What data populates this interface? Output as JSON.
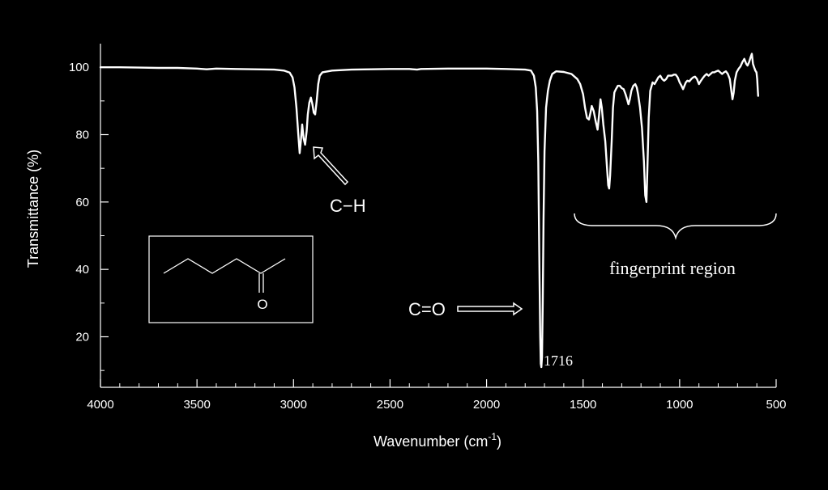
{
  "chart_data": {
    "type": "line",
    "xlabel": "Wavenumber (cm",
    "xlabel_sup": "-1",
    "xlabel_suffix": ")",
    "ylabel": "Transmittance (%)",
    "xlim": [
      4000,
      500
    ],
    "ylim": [
      5,
      107
    ],
    "x_ticks": [
      "4000",
      "3500",
      "3000",
      "2500",
      "2000",
      "1500",
      "1000",
      "500"
    ],
    "y_ticks": [
      "100",
      "80",
      "60",
      "40",
      "20"
    ],
    "grid": false,
    "series": [
      {
        "points": [
          [
            4000,
            100
          ],
          [
            3900,
            100
          ],
          [
            3800,
            99.9
          ],
          [
            3700,
            99.8
          ],
          [
            3600,
            99.8
          ],
          [
            3500,
            99.6
          ],
          [
            3450,
            99.4
          ],
          [
            3400,
            99.6
          ],
          [
            3300,
            99.5
          ],
          [
            3200,
            99.4
          ],
          [
            3100,
            99.3
          ],
          [
            3050,
            99.0
          ],
          [
            3020,
            98.4
          ],
          [
            3005,
            97.0
          ],
          [
            2995,
            94.0
          ],
          [
            2985,
            88.0
          ],
          [
            2975,
            80.0
          ],
          [
            2968,
            74.5
          ],
          [
            2962,
            78.0
          ],
          [
            2955,
            83.0
          ],
          [
            2948,
            79.0
          ],
          [
            2940,
            77.0
          ],
          [
            2932,
            81.0
          ],
          [
            2926,
            86.0
          ],
          [
            2918,
            89.5
          ],
          [
            2910,
            91.0
          ],
          [
            2902,
            89.0
          ],
          [
            2895,
            86.5
          ],
          [
            2888,
            86.0
          ],
          [
            2880,
            90.0
          ],
          [
            2872,
            95.0
          ],
          [
            2864,
            97.5
          ],
          [
            2850,
            98.5
          ],
          [
            2800,
            99.0
          ],
          [
            2700,
            99.3
          ],
          [
            2600,
            99.4
          ],
          [
            2500,
            99.5
          ],
          [
            2400,
            99.5
          ],
          [
            2360,
            99.3
          ],
          [
            2340,
            99.5
          ],
          [
            2200,
            99.6
          ],
          [
            2000,
            99.6
          ],
          [
            1900,
            99.5
          ],
          [
            1800,
            99.3
          ],
          [
            1770,
            99.0
          ],
          [
            1755,
            97.5
          ],
          [
            1745,
            94.0
          ],
          [
            1738,
            87.0
          ],
          [
            1732,
            72.0
          ],
          [
            1727,
            45.0
          ],
          [
            1722,
            20.0
          ],
          [
            1719,
            12.0
          ],
          [
            1716,
            11.0
          ],
          [
            1713,
            14.0
          ],
          [
            1709,
            30.0
          ],
          [
            1705,
            55.0
          ],
          [
            1700,
            75.0
          ],
          [
            1692,
            88.0
          ],
          [
            1682,
            93.0
          ],
          [
            1672,
            96.0
          ],
          [
            1660,
            98.0
          ],
          [
            1640,
            98.8
          ],
          [
            1600,
            98.6
          ],
          [
            1560,
            98.0
          ],
          [
            1530,
            96.5
          ],
          [
            1515,
            95.0
          ],
          [
            1500,
            92.0
          ],
          [
            1490,
            88.0
          ],
          [
            1480,
            85.0
          ],
          [
            1470,
            84.5
          ],
          [
            1462,
            86.5
          ],
          [
            1455,
            88.5
          ],
          [
            1445,
            87.0
          ],
          [
            1435,
            84.0
          ],
          [
            1425,
            81.5
          ],
          [
            1417,
            86.0
          ],
          [
            1410,
            90.5
          ],
          [
            1403,
            88.0
          ],
          [
            1395,
            83.0
          ],
          [
            1385,
            78.0
          ],
          [
            1377,
            71.0
          ],
          [
            1370,
            65.0
          ],
          [
            1365,
            64.0
          ],
          [
            1360,
            68.0
          ],
          [
            1352,
            78.0
          ],
          [
            1345,
            88.0
          ],
          [
            1338,
            92.5
          ],
          [
            1330,
            93.5
          ],
          [
            1320,
            94.5
          ],
          [
            1310,
            94.5
          ],
          [
            1300,
            93.8
          ],
          [
            1290,
            93.5
          ],
          [
            1280,
            92.0
          ],
          [
            1272,
            90.5
          ],
          [
            1265,
            89.0
          ],
          [
            1258,
            90.5
          ],
          [
            1250,
            93.0
          ],
          [
            1240,
            94.5
          ],
          [
            1230,
            95.0
          ],
          [
            1222,
            94.0
          ],
          [
            1215,
            92.0
          ],
          [
            1205,
            88.0
          ],
          [
            1195,
            82.0
          ],
          [
            1185,
            72.0
          ],
          [
            1178,
            62.0
          ],
          [
            1172,
            60.0
          ],
          [
            1167,
            70.0
          ],
          [
            1160,
            85.0
          ],
          [
            1152,
            93.0
          ],
          [
            1140,
            95.5
          ],
          [
            1130,
            95.0
          ],
          [
            1120,
            96.0
          ],
          [
            1110,
            97.0
          ],
          [
            1100,
            97.5
          ],
          [
            1090,
            96.5
          ],
          [
            1080,
            96.0
          ],
          [
            1070,
            96.5
          ],
          [
            1060,
            97.5
          ],
          [
            1040,
            97.5
          ],
          [
            1030,
            97.8
          ],
          [
            1020,
            97.8
          ],
          [
            1010,
            97.0
          ],
          [
            1000,
            95.5
          ],
          [
            990,
            94.5
          ],
          [
            982,
            93.5
          ],
          [
            975,
            94.5
          ],
          [
            968,
            95.5
          ],
          [
            960,
            96.0
          ],
          [
            950,
            95.8
          ],
          [
            940,
            96.5
          ],
          [
            930,
            97.0
          ],
          [
            920,
            97.2
          ],
          [
            910,
            96.5
          ],
          [
            900,
            95.0
          ],
          [
            892,
            95.8
          ],
          [
            880,
            96.8
          ],
          [
            870,
            97.5
          ],
          [
            860,
            98.0
          ],
          [
            850,
            97.5
          ],
          [
            840,
            98.0
          ],
          [
            830,
            98.5
          ],
          [
            820,
            98.5
          ],
          [
            810,
            98.8
          ],
          [
            800,
            99.0
          ],
          [
            790,
            98.5
          ],
          [
            780,
            98.0
          ],
          [
            770,
            98.5
          ],
          [
            760,
            98.8
          ],
          [
            750,
            98.0
          ],
          [
            740,
            96.5
          ],
          [
            732,
            93.0
          ],
          [
            726,
            90.5
          ],
          [
            720,
            92.5
          ],
          [
            714,
            96.0
          ],
          [
            705,
            98.5
          ],
          [
            695,
            99.5
          ],
          [
            685,
            100.2
          ],
          [
            675,
            101.5
          ],
          [
            665,
            102.5
          ],
          [
            655,
            101.0
          ],
          [
            648,
            100.5
          ],
          [
            640,
            101.5
          ],
          [
            632,
            103.0
          ],
          [
            626,
            104.0
          ],
          [
            620,
            101.0
          ],
          [
            614,
            100.0
          ],
          [
            608,
            99.0
          ],
          [
            602,
            98.5
          ],
          [
            598,
            96.5
          ],
          [
            595,
            93.0
          ],
          [
            593,
            91.5
          ]
        ]
      }
    ],
    "annotations": {
      "ch_label": "C−H",
      "co_label": "C=O",
      "peak_label": "1716",
      "fingerprint_label": "fingerprint region",
      "molecule_oxygen": "O"
    }
  },
  "colors": {
    "background": "#000000",
    "foreground": "#ffffff"
  }
}
